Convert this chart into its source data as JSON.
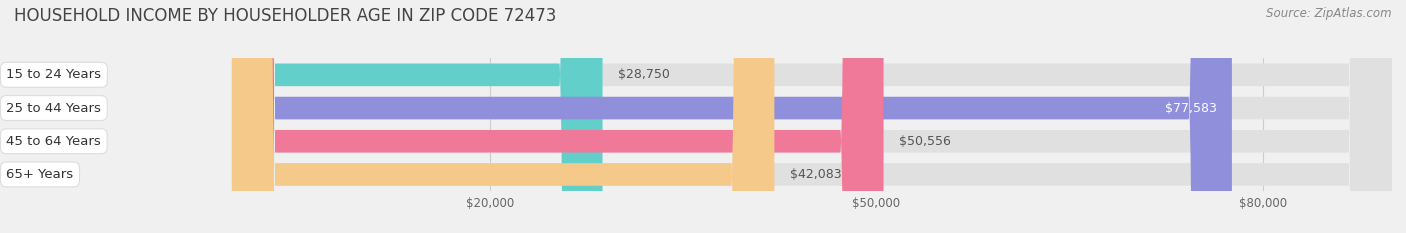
{
  "title": "HOUSEHOLD INCOME BY HOUSEHOLDER AGE IN ZIP CODE 72473",
  "source": "Source: ZipAtlas.com",
  "categories": [
    "15 to 24 Years",
    "25 to 44 Years",
    "45 to 64 Years",
    "65+ Years"
  ],
  "values": [
    28750,
    77583,
    50556,
    42083
  ],
  "bar_colors": [
    "#63cfcb",
    "#8f8fdb",
    "#f07898",
    "#f5c98a"
  ],
  "bg_color": "#f0f0f0",
  "bar_bg_color": "#e0e0e0",
  "xlim_min": -18000,
  "xlim_max": 90000,
  "xticks": [
    20000,
    50000,
    80000
  ],
  "xtick_labels": [
    "$20,000",
    "$50,000",
    "$80,000"
  ],
  "title_fontsize": 12,
  "label_fontsize": 9.5,
  "value_fontsize": 9,
  "source_fontsize": 8.5,
  "bar_height": 0.68
}
